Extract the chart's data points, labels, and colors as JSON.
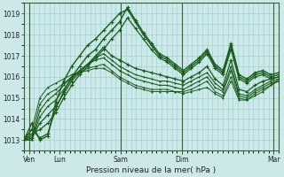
{
  "title": "",
  "xlabel": "Pression niveau de la mer( hPa )",
  "ylabel": "",
  "bg_color": "#cce8e8",
  "grid_color": "#99cccc",
  "line_color": "#1a5c1a",
  "ylim": [
    1012.5,
    1019.5
  ],
  "xlim": [
    0,
    100
  ],
  "yticks": [
    1013,
    1014,
    1015,
    1016,
    1017,
    1018,
    1019
  ],
  "xtick_positions": [
    2,
    14,
    38,
    62,
    86,
    98
  ],
  "xtick_labels": [
    "Ven",
    "Lun",
    "Sam",
    "Dim",
    "",
    "Mar"
  ],
  "vline_positions": [
    2,
    38,
    62,
    98
  ],
  "series": [
    [
      1013.0,
      1013.8,
      1013.0,
      1013.2,
      1014.8,
      1015.8,
      1016.5,
      1017.0,
      1017.5,
      1017.8,
      1018.2,
      1018.6,
      1019.0,
      1019.2,
      1018.6,
      1018.0,
      1017.5,
      1017.0,
      1016.8,
      1016.5,
      1016.2,
      1016.5,
      1016.8,
      1017.2,
      1016.5,
      1016.2,
      1017.5,
      1016.0,
      1015.8,
      1016.1,
      1016.2,
      1016.0,
      1016.1
    ],
    [
      1013.0,
      1013.5,
      1013.1,
      1013.3,
      1014.5,
      1015.3,
      1016.0,
      1016.5,
      1017.0,
      1017.3,
      1017.8,
      1018.2,
      1018.6,
      1019.3,
      1018.7,
      1018.1,
      1017.6,
      1017.1,
      1016.9,
      1016.6,
      1016.3,
      1016.6,
      1016.9,
      1017.3,
      1016.6,
      1016.3,
      1017.6,
      1016.1,
      1015.9,
      1016.2,
      1016.3,
      1016.1,
      1016.2
    ],
    [
      1013.0,
      1013.3,
      1013.5,
      1013.8,
      1014.3,
      1015.0,
      1015.6,
      1016.1,
      1016.5,
      1016.9,
      1017.3,
      1017.8,
      1018.2,
      1018.8,
      1018.3,
      1017.8,
      1017.3,
      1016.9,
      1016.7,
      1016.4,
      1016.1,
      1016.4,
      1016.7,
      1017.1,
      1016.4,
      1016.1,
      1017.3,
      1015.9,
      1015.7,
      1016.0,
      1016.1,
      1015.9,
      1016.0
    ],
    [
      1013.0,
      1013.1,
      1013.8,
      1014.2,
      1014.6,
      1015.2,
      1015.8,
      1016.2,
      1016.6,
      1017.0,
      1017.4,
      1017.0,
      1016.8,
      1016.6,
      1016.4,
      1016.3,
      1016.2,
      1016.1,
      1016.0,
      1015.9,
      1015.8,
      1016.0,
      1016.2,
      1016.5,
      1015.9,
      1015.6,
      1016.8,
      1015.4,
      1015.3,
      1015.6,
      1015.8,
      1015.9,
      1016.0
    ],
    [
      1013.0,
      1013.0,
      1014.1,
      1014.6,
      1014.9,
      1015.4,
      1015.9,
      1016.3,
      1016.6,
      1016.9,
      1017.1,
      1016.8,
      1016.5,
      1016.3,
      1016.1,
      1016.0,
      1015.9,
      1015.8,
      1015.8,
      1015.7,
      1015.6,
      1015.8,
      1016.0,
      1016.2,
      1015.7,
      1015.4,
      1016.5,
      1015.2,
      1015.1,
      1015.4,
      1015.6,
      1015.8,
      1015.9
    ],
    [
      1013.0,
      1013.0,
      1014.4,
      1014.9,
      1015.2,
      1015.6,
      1016.0,
      1016.3,
      1016.6,
      1016.8,
      1016.9,
      1016.6,
      1016.3,
      1016.1,
      1015.9,
      1015.8,
      1015.7,
      1015.6,
      1015.6,
      1015.5,
      1015.4,
      1015.6,
      1015.8,
      1016.0,
      1015.5,
      1015.3,
      1016.3,
      1015.1,
      1015.0,
      1015.3,
      1015.5,
      1015.7,
      1015.8
    ],
    [
      1013.0,
      1013.2,
      1014.7,
      1015.2,
      1015.4,
      1015.7,
      1016.0,
      1016.2,
      1016.4,
      1016.5,
      1016.6,
      1016.3,
      1016.0,
      1015.8,
      1015.6,
      1015.5,
      1015.4,
      1015.4,
      1015.4,
      1015.3,
      1015.3,
      1015.4,
      1015.6,
      1015.8,
      1015.3,
      1015.1,
      1016.0,
      1015.0,
      1014.9,
      1015.2,
      1015.4,
      1015.6,
      1015.8
    ],
    [
      1013.0,
      1013.5,
      1015.0,
      1015.5,
      1015.7,
      1015.9,
      1016.1,
      1016.2,
      1016.3,
      1016.4,
      1016.4,
      1016.2,
      1015.9,
      1015.7,
      1015.5,
      1015.4,
      1015.3,
      1015.3,
      1015.3,
      1015.3,
      1015.2,
      1015.3,
      1015.4,
      1015.5,
      1015.2,
      1015.0,
      1015.8,
      1014.9,
      1014.9,
      1015.1,
      1015.3,
      1015.6,
      1015.9
    ]
  ]
}
